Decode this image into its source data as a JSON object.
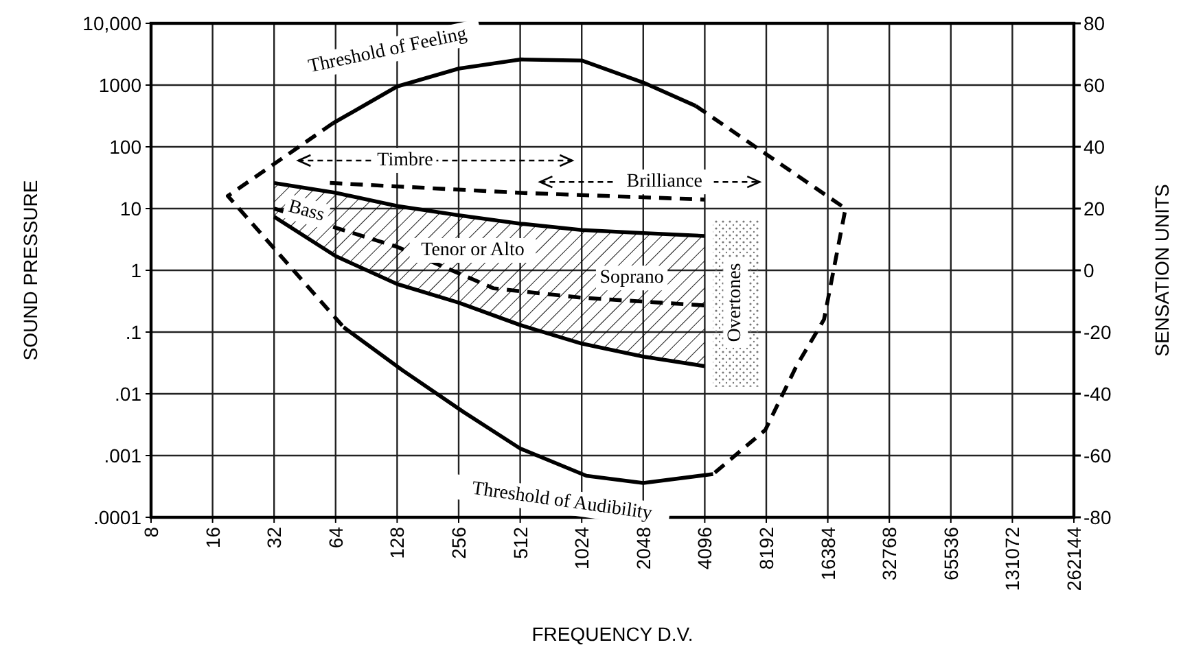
{
  "chart_data": {
    "type": "line",
    "xlabel": "FREQUENCY D.V.",
    "ylabel": "SOUND PRESSURE",
    "y2label": "SENSATION UNITS",
    "log": "xy",
    "grid": true,
    "xlim": [
      8,
      262144
    ],
    "xticks": [
      8,
      16,
      32,
      64,
      128,
      256,
      512,
      1024,
      2048,
      4096,
      8192,
      16384,
      32768,
      65536,
      131072,
      262144
    ],
    "ylim": [
      0.0001,
      10000
    ],
    "yticks": [
      {
        "value": 0.0001,
        "label": ".0001"
      },
      {
        "value": 0.001,
        "label": ".001"
      },
      {
        "value": 0.01,
        "label": ".01"
      },
      {
        "value": 0.1,
        "label": ".1"
      },
      1,
      10,
      100,
      1000,
      {
        "value": 10000,
        "label": "10,000"
      }
    ],
    "y2lim": [
      -80,
      80
    ],
    "y2ticks": [
      -80,
      -60,
      -40,
      -20,
      0,
      20,
      40,
      60,
      80
    ],
    "series": [
      {
        "color": "#000000",
        "line_style": "solid",
        "x": [
          32,
          64,
          128,
          256,
          512,
          1024,
          2048,
          4096
        ],
        "values": [
          26,
          18,
          11,
          7.8,
          5.7,
          4.5,
          4,
          3.6
        ]
      },
      {
        "color": "#000000",
        "line_style": "solid",
        "x": [
          32,
          64,
          128,
          256,
          512,
          1024,
          2048,
          4096
        ],
        "values": [
          7.4,
          1.7,
          0.6,
          0.3,
          0.13,
          0.065,
          0.04,
          0.028
        ]
      },
      {
        "color": "#000000",
        "line_style": "solid",
        "x": [
          62,
          128,
          256,
          512,
          1024,
          2048,
          3700
        ],
        "values": [
          240,
          950,
          1850,
          2600,
          2500,
          1100,
          460
        ]
      },
      {
        "color": "#000000",
        "line_style": "solid",
        "x": [
          70,
          136,
          270,
          512,
          1080,
          2048,
          4500
        ],
        "values": [
          0.12,
          0.024,
          0.0051,
          0.0013,
          0.00047,
          0.00036,
          0.0005
        ]
      },
      {
        "color": "#000000",
        "line_style": "dashed",
        "x": [
          62,
          19,
          70
        ],
        "values": [
          240,
          16,
          0.12
        ]
      },
      {
        "color": "#000000",
        "line_style": "dashed",
        "x": [
          3700,
          20000,
          15700,
          11500,
          8100,
          4500
        ],
        "values": [
          460,
          10,
          0.16,
          0.028,
          0.0026,
          0.0005
        ]
      },
      {
        "color": "#000000",
        "line_style": "dashed",
        "x": [
          60,
          512,
          4096
        ],
        "values": [
          26,
          18,
          14
        ]
      },
      {
        "color": "#000000",
        "line_style": "dashed",
        "x": [
          32,
          128,
          380,
          1024,
          4096
        ],
        "values": [
          10,
          2.4,
          0.51,
          0.36,
          0.27
        ]
      }
    ],
    "annotations": [
      "Threshold of Feeling",
      "Threshold of Audibility",
      "Timbre",
      "Brilliance",
      "Bass",
      "Tenor or Alto",
      "Soprano",
      "Overtones"
    ]
  }
}
